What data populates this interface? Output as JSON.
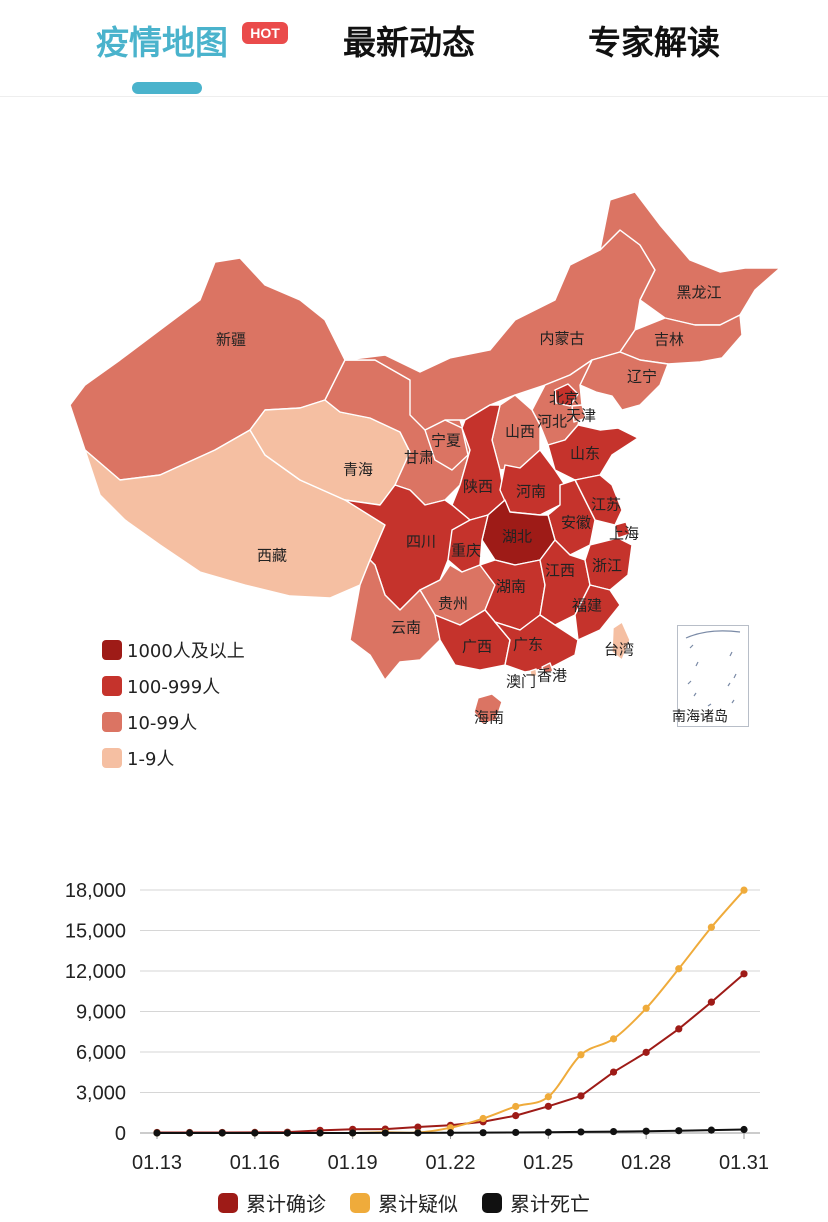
{
  "tabs": [
    {
      "label": "疫情地图",
      "active": true,
      "badge": "HOT"
    },
    {
      "label": "最新动态",
      "active": false
    },
    {
      "label": "专家解读",
      "active": false
    }
  ],
  "map": {
    "colors": {
      "1000+": "#9e1b17",
      "100-999": "#c5332c",
      "10-99": "#db7463",
      "1-9": "#f5bfa2"
    },
    "provinces": [
      {
        "name": "新疆",
        "level": "10-99"
      },
      {
        "name": "西藏",
        "level": "1-9"
      },
      {
        "name": "青海",
        "level": "1-9"
      },
      {
        "name": "甘肃",
        "level": "10-99"
      },
      {
        "name": "宁夏",
        "level": "10-99"
      },
      {
        "name": "内蒙古",
        "level": "10-99"
      },
      {
        "name": "黑龙江",
        "level": "10-99"
      },
      {
        "name": "吉林",
        "level": "10-99"
      },
      {
        "name": "辽宁",
        "level": "10-99"
      },
      {
        "name": "北京",
        "level": "100-999"
      },
      {
        "name": "天津",
        "level": "10-99"
      },
      {
        "name": "河北",
        "level": "10-99"
      },
      {
        "name": "山西",
        "level": "10-99"
      },
      {
        "name": "陕西",
        "level": "100-999"
      },
      {
        "name": "山东",
        "level": "100-999"
      },
      {
        "name": "河南",
        "level": "100-999"
      },
      {
        "name": "江苏",
        "level": "100-999"
      },
      {
        "name": "安徽",
        "level": "100-999"
      },
      {
        "name": "上海",
        "level": "100-999"
      },
      {
        "name": "湖北",
        "level": "1000+"
      },
      {
        "name": "四川",
        "level": "100-999"
      },
      {
        "name": "重庆",
        "level": "100-999"
      },
      {
        "name": "浙江",
        "level": "100-999"
      },
      {
        "name": "江西",
        "level": "100-999"
      },
      {
        "name": "湖南",
        "level": "100-999"
      },
      {
        "name": "贵州",
        "level": "10-99"
      },
      {
        "name": "云南",
        "level": "10-99"
      },
      {
        "name": "福建",
        "level": "100-999"
      },
      {
        "name": "广西",
        "level": "100-999"
      },
      {
        "name": "广东",
        "level": "100-999"
      },
      {
        "name": "台湾",
        "level": "1-9"
      },
      {
        "name": "香港",
        "level": "10-99"
      },
      {
        "name": "澳门",
        "level": "1-9"
      },
      {
        "name": "海南",
        "level": "10-99"
      }
    ],
    "inset_label": "南海诸岛",
    "legend": [
      {
        "label": "1000人及以上",
        "level": "1000+"
      },
      {
        "label": "100-999人",
        "level": "100-999"
      },
      {
        "label": "10-99人",
        "level": "10-99"
      },
      {
        "label": "1-9人",
        "level": "1-9"
      }
    ]
  },
  "chart_data": {
    "type": "line",
    "x": [
      "01.13",
      "01.14",
      "01.15",
      "01.16",
      "01.17",
      "01.18",
      "01.19",
      "01.20",
      "01.21",
      "01.22",
      "01.23",
      "01.24",
      "01.25",
      "01.26",
      "01.27",
      "01.28",
      "01.29",
      "01.30",
      "01.31"
    ],
    "x_tick_labels": [
      "01.13",
      "01.16",
      "01.19",
      "01.22",
      "01.25",
      "01.28",
      "01.31"
    ],
    "y_tick_labels": [
      "0",
      "3,000",
      "6,000",
      "9,000",
      "12,000",
      "15,000",
      "18,000"
    ],
    "ylim": [
      0,
      18000
    ],
    "grid": true,
    "legend_position": "bottom",
    "series": [
      {
        "name": "累计确诊",
        "color": "#9e1b17",
        "smooth": false,
        "values": [
          41,
          41,
          41,
          45,
          62,
          198,
          275,
          291,
          440,
          571,
          830,
          1287,
          1975,
          2744,
          4515,
          5974,
          7711,
          9692,
          11791
        ]
      },
      {
        "name": "累计疑似",
        "color": "#efab3b",
        "smooth": true,
        "values": [
          0,
          0,
          0,
          0,
          0,
          0,
          0,
          54,
          37,
          393,
          1072,
          1965,
          2684,
          5794,
          6973,
          9239,
          12167,
          15238,
          17988
        ]
      },
      {
        "name": "累计死亡",
        "color": "#111111",
        "smooth": false,
        "values": [
          1,
          1,
          2,
          2,
          2,
          3,
          4,
          6,
          9,
          17,
          25,
          41,
          56,
          80,
          106,
          132,
          170,
          213,
          259
        ]
      }
    ]
  }
}
